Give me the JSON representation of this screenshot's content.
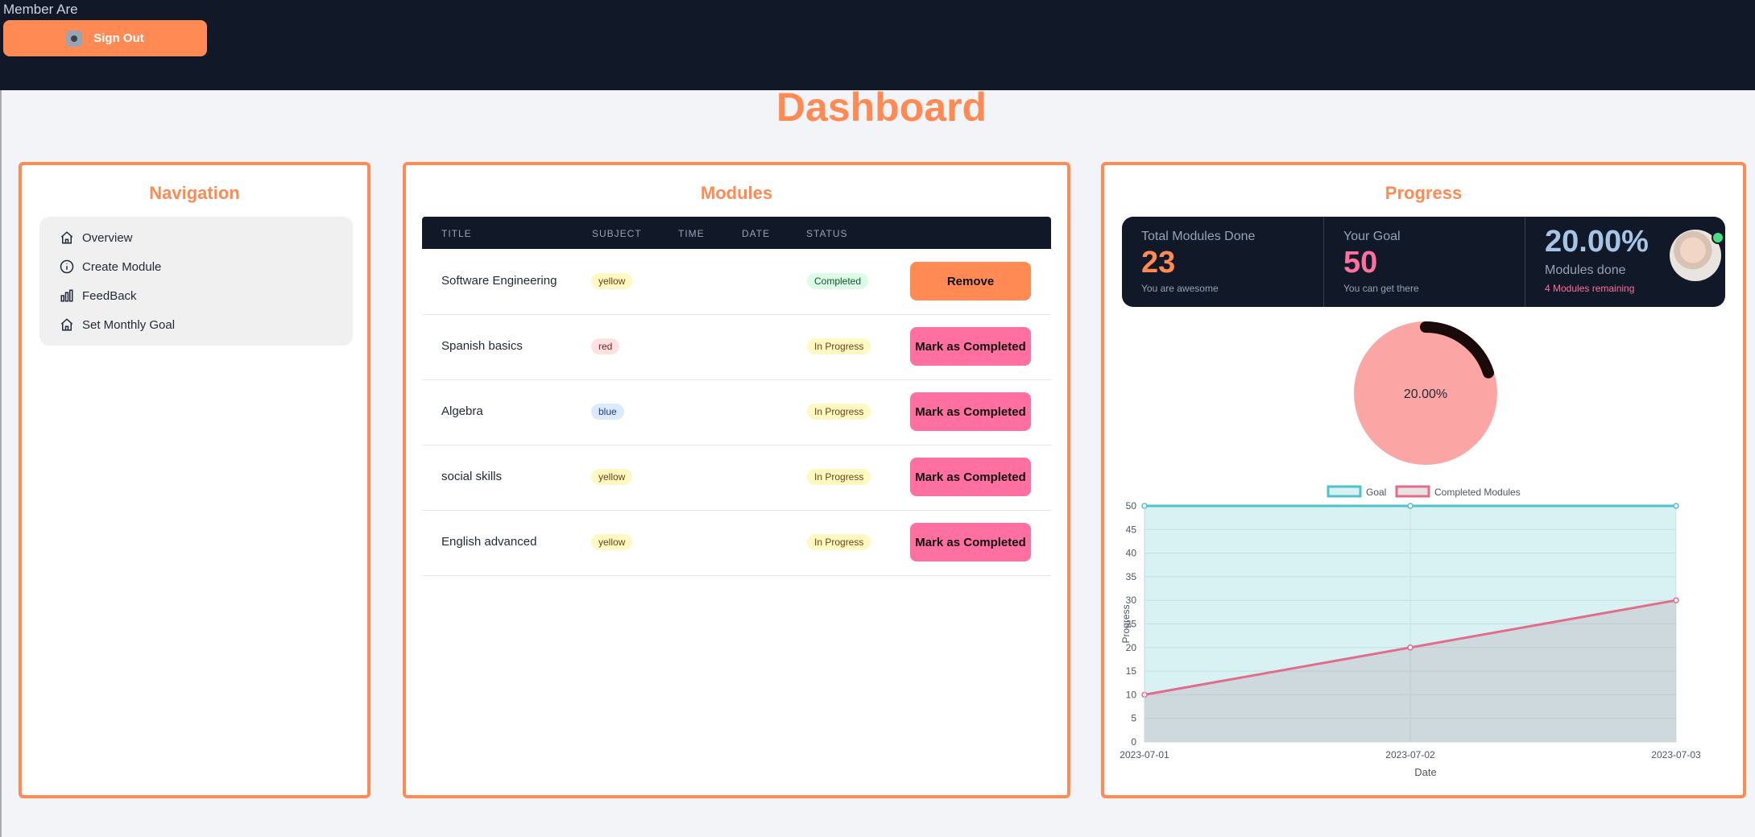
{
  "header": {
    "member_label": "Member Are",
    "sign_out_label": "Sign Out"
  },
  "page_title": "Dashboard",
  "navigation": {
    "title": "Navigation",
    "items": [
      {
        "label": "Overview",
        "icon": "home-icon"
      },
      {
        "label": "Create Module",
        "icon": "info-icon"
      },
      {
        "label": "FeedBack",
        "icon": "bar-chart-icon"
      },
      {
        "label": "Set Monthly Goal",
        "icon": "home-icon"
      }
    ]
  },
  "modules": {
    "title": "Modules",
    "columns": [
      "TITLE",
      "SUBJECT",
      "TIME",
      "DATE",
      "STATUS"
    ],
    "rows": [
      {
        "title": "Software Engineering",
        "subject": "yellow",
        "status": "Completed",
        "action": "Remove"
      },
      {
        "title": "Spanish basics",
        "subject": "red",
        "status": "In Progress",
        "action": "Mark as Completed"
      },
      {
        "title": "Algebra",
        "subject": "blue",
        "status": "In Progress",
        "action": "Mark as Completed"
      },
      {
        "title": "social skills",
        "subject": "yellow",
        "status": "In Progress",
        "action": "Mark as Completed"
      },
      {
        "title": "English advanced",
        "subject": "yellow",
        "status": "In Progress",
        "action": "Mark as Completed"
      }
    ]
  },
  "progress": {
    "title": "Progress",
    "stats": [
      {
        "label": "Total Modules Done",
        "value": "23",
        "sub": "You are awesome",
        "color": "#ff8a54"
      },
      {
        "label": "Your Goal",
        "value": "50",
        "sub": "You can get there",
        "color": "#ff6f9f"
      },
      {
        "label": "Modules done",
        "value": "20.00%",
        "sub": "4 Modules remaining",
        "color": "#a5c4e6",
        "sub_color": "#ff6f9f"
      }
    ],
    "donut_label": "20.00%",
    "donut_fraction": 0.2
  },
  "colors": {
    "accent": "#ff8a54",
    "pink": "#ff6f9f",
    "dark": "#111827",
    "goal_line": "#4fc3c7",
    "completed_line": "#e26d8a"
  },
  "chart_data": {
    "type": "line",
    "xlabel": "Date",
    "ylabel": "Progress",
    "x": [
      "2023-07-01",
      "2023-07-02",
      "2023-07-03"
    ],
    "ylim": [
      0,
      50
    ],
    "yticks": [
      0,
      5,
      10,
      15,
      20,
      25,
      30,
      35,
      40,
      45,
      50
    ],
    "legend_position": "top",
    "grid": true,
    "series": [
      {
        "name": "Goal",
        "values": [
          50,
          50,
          50
        ]
      },
      {
        "name": "Completed Modules",
        "values": [
          10,
          20,
          30
        ]
      }
    ]
  }
}
